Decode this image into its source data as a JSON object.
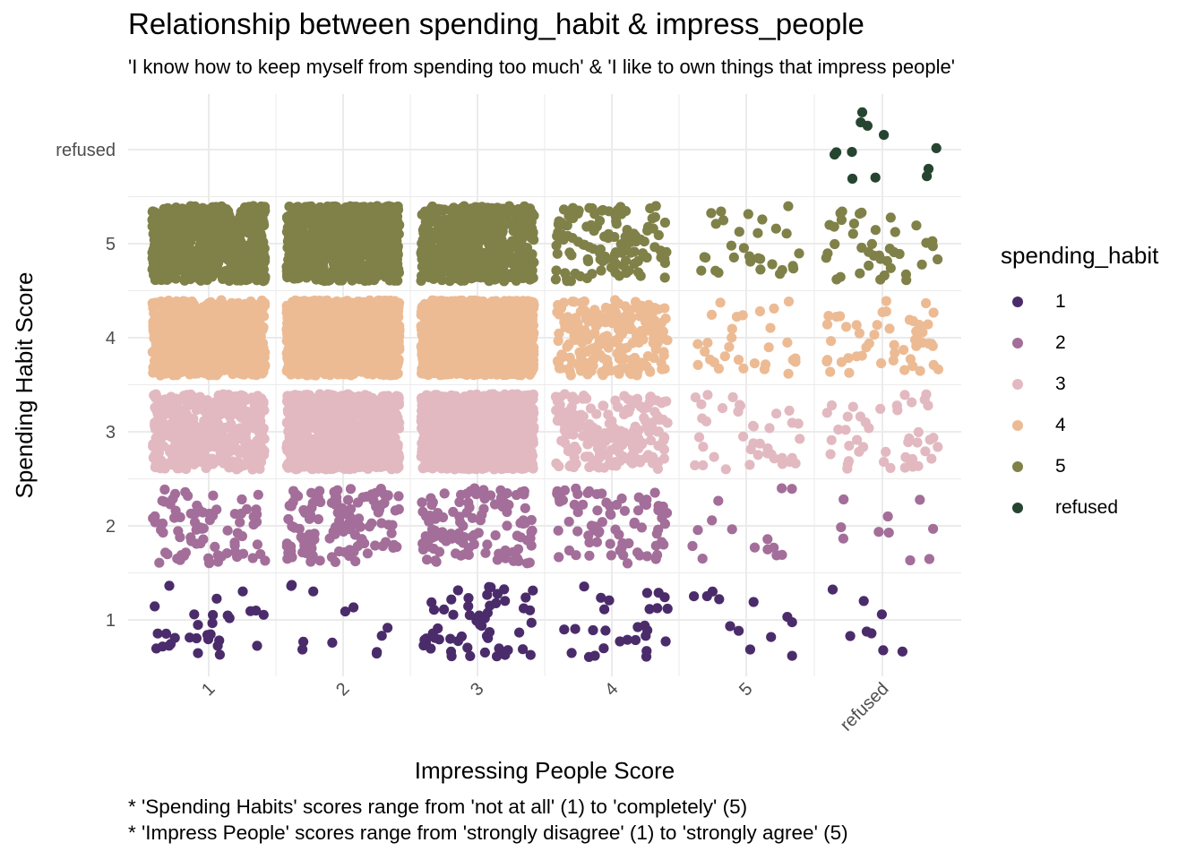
{
  "chart_data": {
    "type": "scatter",
    "jittered": true,
    "title": "Relationship between spending_habit & impress_people",
    "subtitle": "'I know how to keep myself from spending too much' & 'I like to own things that impress people'",
    "xlabel": "Impressing People Score",
    "ylabel": "Spending Habit Score",
    "x_categories": [
      "1",
      "2",
      "3",
      "4",
      "5",
      "refused"
    ],
    "y_categories": [
      "1",
      "2",
      "3",
      "4",
      "5",
      "refused"
    ],
    "grid": true,
    "legend": {
      "title": "spending_habit",
      "placement": "right",
      "entries": [
        {
          "label": "1",
          "color": "#4b2c6b"
        },
        {
          "label": "2",
          "color": "#a36e99"
        },
        {
          "label": "3",
          "color": "#e2b9c1"
        },
        {
          "label": "4",
          "color": "#ecbb94"
        },
        {
          "label": "5",
          "color": "#7f8148"
        },
        {
          "label": "refused",
          "color": "#264531"
        }
      ]
    },
    "approx_point_counts": {
      "by_x": [
        "1",
        "2",
        "3",
        "4",
        "5",
        "refused"
      ],
      "rows": [
        {
          "spending_habit": "1",
          "counts": [
            30,
            12,
            55,
            28,
            12,
            8
          ]
        },
        {
          "spending_habit": "2",
          "counts": [
            80,
            130,
            110,
            75,
            14,
            10
          ]
        },
        {
          "spending_habit": "3",
          "counts": [
            450,
            900,
            1100,
            200,
            40,
            45
          ]
        },
        {
          "spending_habit": "4",
          "counts": [
            700,
            1400,
            1300,
            220,
            30,
            50
          ]
        },
        {
          "spending_habit": "5",
          "counts": [
            750,
            800,
            600,
            120,
            30,
            40
          ]
        },
        {
          "spending_habit": "refused",
          "counts": [
            0,
            0,
            0,
            0,
            0,
            12
          ]
        }
      ]
    },
    "captions": [
      "* 'Spending Habits' scores range from 'not at all' (1) to 'completely' (5)",
      "* 'Impress People' scores range from 'strongly disagree' (1) to 'strongly agree' (5)"
    ]
  }
}
